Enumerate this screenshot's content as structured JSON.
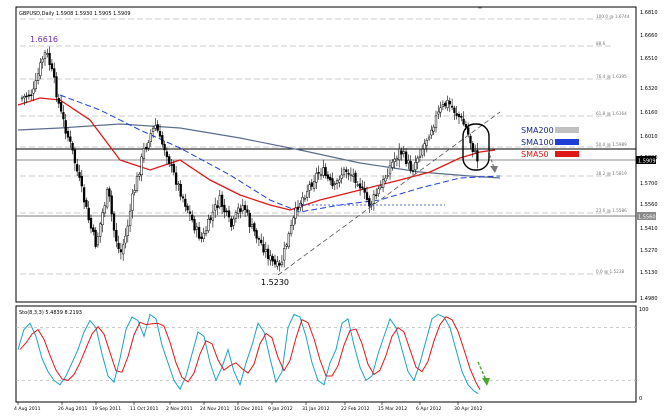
{
  "header": {
    "text": "GBPUSD,Daily  1.5908 1.5930 1.5905 1.5909"
  },
  "labels": {
    "high": "1.6616",
    "low": "1.5230"
  },
  "fib_levels": [
    {
      "label": "100.0 @ 1.6744"
    },
    {
      "label": "88.6"
    },
    {
      "label": "76.4 @ 1.6395"
    },
    {
      "label": "61.8 @ 1.6164"
    },
    {
      "label": "50.0 @ 1.5989"
    },
    {
      "label": "38.2 @ 1.5819"
    },
    {
      "label": "23.6 @ 1.5586"
    },
    {
      "label": "0.0 @ 1.5238"
    }
  ],
  "price_axis": [
    "1.6810",
    "1.6660",
    "1.6510",
    "1.6320",
    "1.6160",
    "1.6010",
    "1.5880",
    "1.5700",
    "1.5560",
    "1.5410",
    "1.5270",
    "1.5130",
    "1.4980"
  ],
  "current_price_tag": "1.5909",
  "level_tag": "1.5560",
  "legend": [
    {
      "label": "SMA200",
      "color": "#c0c0c0"
    },
    {
      "label": "SMA100",
      "color": "#1d3fd8"
    },
    {
      "label": "SMA50",
      "color": "#e01818"
    }
  ],
  "oscillator": {
    "title": "Sto(8,3,3) 5.4839 8.2193",
    "axis": [
      "100",
      "0"
    ]
  },
  "time_axis": [
    "4 Aug 2011",
    "26 Aug 2011",
    "19 Sep 2011",
    "11 Oct 2011",
    "2 Nov 2011",
    "24 Nov 2011",
    "16 Dec 2011",
    "9 Jan 2012",
    "31 Jan 2012",
    "22 Feb 2012",
    "15 Mar 2012",
    "6 Apr 2012",
    "30 Apr 2012"
  ],
  "colors": {
    "bull": "#ffffff",
    "bear": "#000000",
    "grid": "#d8d8d8",
    "fib": "#bdbdbd",
    "stoch_main": "#1aa3c4",
    "stoch_signal": "#e01818",
    "arrow": "#4aa82e"
  }
}
